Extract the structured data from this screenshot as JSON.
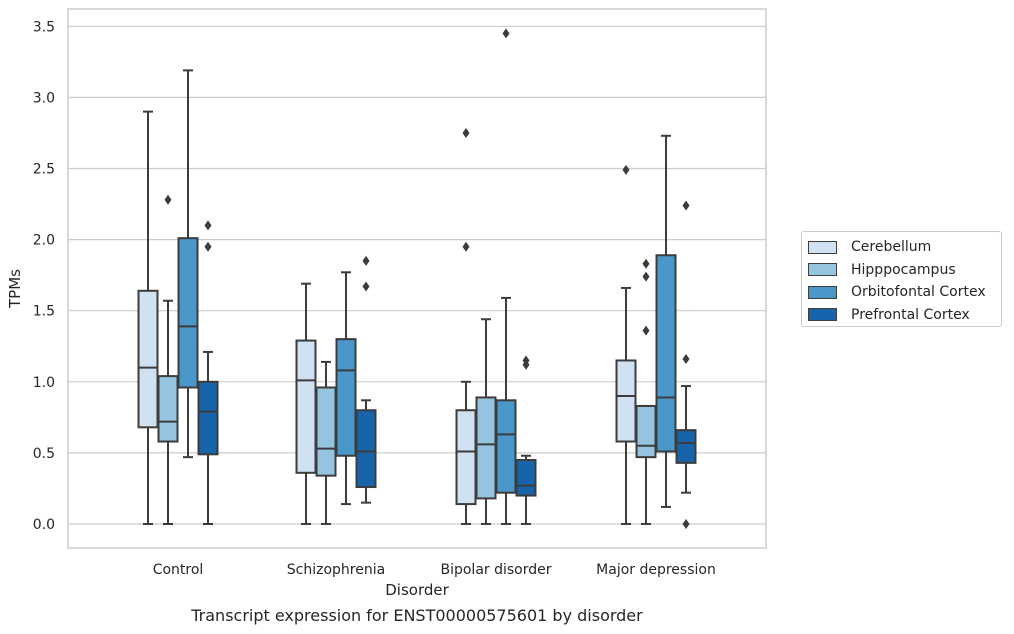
{
  "caption": "Transcript expression for ENST00000575601 by disorder",
  "legend": {
    "placement": "center-right, outside plot",
    "items": [
      {
        "label": "Cerebellum",
        "color": "#d0e1f2"
      },
      {
        "label": "Hipppocampus",
        "color": "#94c4df"
      },
      {
        "label": "Orbitofontal Cortex",
        "color": "#4a98c9"
      },
      {
        "label": "Prefrontal Cortex",
        "color": "#1764ab"
      }
    ]
  },
  "chart_data": {
    "type": "box",
    "title": "",
    "xlabel": "Disorder",
    "ylabel": "TPMs",
    "ylim": [
      -0.16,
      3.63
    ],
    "yticks": [
      0.0,
      0.5,
      1.0,
      1.5,
      2.0,
      2.5,
      3.0,
      3.5
    ],
    "ytick_labels": [
      "0.0",
      "0.5",
      "1.0",
      "1.5",
      "2.0",
      "2.5",
      "3.0",
      "3.5"
    ],
    "grid": "horizontal",
    "categories": [
      "Control",
      "Schizophrenia",
      "Bipolar disorder",
      "Major depression"
    ],
    "series": [
      {
        "name": "Cerebellum",
        "color": "#d0e1f2",
        "boxes": [
          {
            "whislo": 0.0,
            "q1": 0.68,
            "median": 1.1,
            "q3": 1.64,
            "whishi": 2.9,
            "fliers": []
          },
          {
            "whislo": 0.0,
            "q1": 0.36,
            "median": 1.01,
            "q3": 1.29,
            "whishi": 1.69,
            "fliers": []
          },
          {
            "whislo": 0.0,
            "q1": 0.14,
            "median": 0.51,
            "q3": 0.8,
            "whishi": 1.0,
            "fliers": [
              1.95,
              2.75
            ]
          },
          {
            "whislo": 0.0,
            "q1": 0.58,
            "median": 0.9,
            "q3": 1.15,
            "whishi": 1.66,
            "fliers": [
              2.49
            ]
          }
        ]
      },
      {
        "name": "Hipppocampus",
        "color": "#94c4df",
        "boxes": [
          {
            "whislo": 0.0,
            "q1": 0.58,
            "median": 0.72,
            "q3": 1.04,
            "whishi": 1.57,
            "fliers": [
              2.28
            ]
          },
          {
            "whislo": 0.0,
            "q1": 0.34,
            "median": 0.53,
            "q3": 0.96,
            "whishi": 1.14,
            "fliers": []
          },
          {
            "whislo": 0.0,
            "q1": 0.18,
            "median": 0.56,
            "q3": 0.89,
            "whishi": 1.44,
            "fliers": []
          },
          {
            "whislo": 0.0,
            "q1": 0.47,
            "median": 0.55,
            "q3": 0.83,
            "whishi": 0.83,
            "fliers": [
              1.36,
              1.74,
              1.83
            ]
          }
        ]
      },
      {
        "name": "Orbitofontal Cortex",
        "color": "#4a98c9",
        "boxes": [
          {
            "whislo": 0.47,
            "q1": 0.96,
            "median": 1.39,
            "q3": 2.01,
            "whishi": 3.19,
            "fliers": []
          },
          {
            "whislo": 0.14,
            "q1": 0.48,
            "median": 1.08,
            "q3": 1.3,
            "whishi": 1.77,
            "fliers": []
          },
          {
            "whislo": 0.0,
            "q1": 0.22,
            "median": 0.63,
            "q3": 0.87,
            "whishi": 1.59,
            "fliers": [
              3.45
            ]
          },
          {
            "whislo": 0.12,
            "q1": 0.51,
            "median": 0.89,
            "q3": 1.89,
            "whishi": 2.73,
            "fliers": []
          }
        ]
      },
      {
        "name": "Prefrontal Cortex",
        "color": "#1764ab",
        "boxes": [
          {
            "whislo": 0.0,
            "q1": 0.49,
            "median": 0.79,
            "q3": 1.0,
            "whishi": 1.21,
            "fliers": [
              1.95,
              2.1
            ]
          },
          {
            "whislo": 0.15,
            "q1": 0.26,
            "median": 0.51,
            "q3": 0.8,
            "whishi": 0.87,
            "fliers": [
              1.67,
              1.85
            ]
          },
          {
            "whislo": 0.0,
            "q1": 0.2,
            "median": 0.27,
            "q3": 0.45,
            "whishi": 0.48,
            "fliers": [
              1.12,
              1.15
            ]
          },
          {
            "whislo": 0.22,
            "q1": 0.43,
            "median": 0.57,
            "q3": 0.66,
            "whishi": 0.97,
            "fliers": [
              0.0,
              1.16,
              2.24
            ]
          }
        ]
      }
    ]
  }
}
